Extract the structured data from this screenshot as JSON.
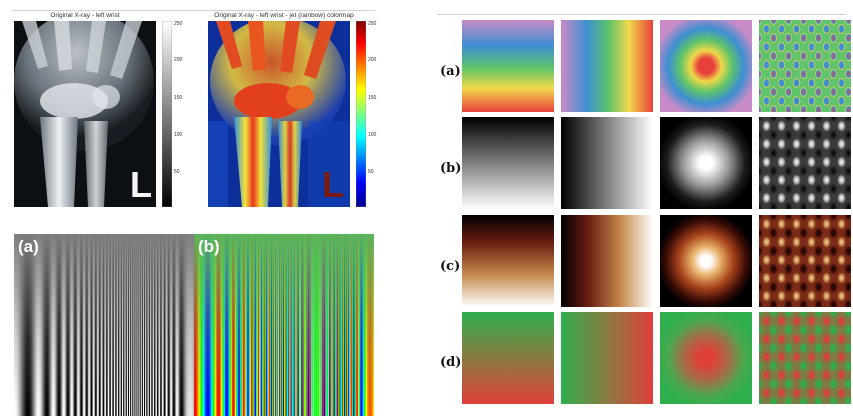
{
  "xray_panels": {
    "left_title": "Original X-ray - left wrist",
    "right_title": "Original X-ray - left wrist - jet (rainbow) colormap",
    "marker_letter": "L",
    "colorbar_ticks": [
      "250",
      "200",
      "150",
      "100",
      "50"
    ]
  },
  "chirp_figure": {
    "label_a": "(a)",
    "label_b": "(b)"
  },
  "colormap_grid": {
    "row_labels": [
      "(a)",
      "(b)",
      "(c)",
      "(d)"
    ],
    "rows": [
      {
        "colormap": "rainbow",
        "colors": [
          "#e8413c",
          "#f0d84a",
          "#5fc46a",
          "#3d8fd1",
          "#c98bc7"
        ]
      },
      {
        "colormap": "grayscale",
        "colors": [
          "#000000",
          "#ffffff"
        ]
      },
      {
        "colormap": "heat",
        "colors": [
          "#000000",
          "#6b1e12",
          "#c68a4c",
          "#ffffff"
        ]
      },
      {
        "colormap": "red-green",
        "colors": [
          "#2fae4c",
          "#e0403a"
        ]
      }
    ],
    "columns": [
      "vertical-gradient",
      "horizontal-gradient",
      "radial",
      "oscillating-pattern"
    ]
  }
}
